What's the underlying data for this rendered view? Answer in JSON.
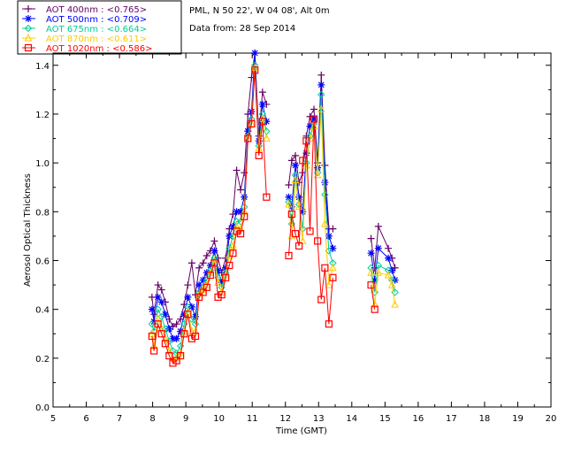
{
  "info": {
    "site": "PML, N 50 22', W 04 08', Alt 0m",
    "date": "Data from: 28 Sep 2014"
  },
  "chart_data": {
    "type": "line",
    "xlabel": "Time (GMT)",
    "ylabel": "Aerosol Optical Thickness",
    "xlim": [
      5,
      20
    ],
    "ylim": [
      0.0,
      1.45
    ],
    "xticks": [
      "5",
      "6",
      "7",
      "8",
      "9",
      "10",
      "11",
      "12",
      "13",
      "14",
      "15",
      "16",
      "17",
      "18",
      "19",
      "20"
    ],
    "yticks": [
      "0.0",
      "0.2",
      "0.4",
      "0.6",
      "0.8",
      "1.0",
      "1.2",
      "1.4"
    ],
    "grid": false,
    "legend": "top-left",
    "x": [
      7.98,
      8.04,
      8.16,
      8.27,
      8.38,
      8.5,
      8.61,
      8.72,
      8.84,
      8.95,
      9.06,
      9.18,
      9.29,
      9.4,
      9.52,
      9.63,
      9.74,
      9.86,
      9.97,
      10.08,
      10.2,
      10.31,
      10.42,
      10.53,
      10.65,
      10.76,
      10.87,
      10.98,
      11.08,
      11.2,
      11.31,
      11.43,
      12.1,
      12.19,
      12.3,
      12.41,
      12.52,
      12.63,
      12.74,
      12.86,
      12.97,
      13.08,
      13.19,
      13.31,
      13.43,
      14.58,
      14.69,
      14.8,
      15.1,
      15.21,
      15.3,
      15.4,
      15.52,
      15.63,
      15.75,
      15.86
    ],
    "series": [
      {
        "name": "AOT  400nm : <0.765>",
        "color": "#660066",
        "marker": "+",
        "values": [
          0.45,
          0.38,
          0.5,
          0.48,
          0.43,
          0.36,
          0.33,
          0.34,
          0.36,
          0.42,
          0.5,
          0.59,
          0.46,
          0.57,
          0.59,
          0.62,
          0.64,
          0.68,
          0.61,
          0.55,
          0.61,
          0.73,
          0.79,
          0.97,
          0.89,
          0.96,
          1.2,
          1.35,
          1.45,
          1.11,
          1.29,
          1.24,
          0.91,
          1.01,
          1.03,
          0.92,
          0.96,
          1.11,
          1.19,
          1.22,
          1.0,
          1.36,
          0.99,
          0.73,
          0.73,
          0.69,
          0.57,
          0.74,
          0.65,
          0.61,
          0.57,
          null,
          null,
          null,
          null,
          null
        ]
      },
      {
        "name": "AOT  500nm : <0.709>",
        "color": "#0000ff",
        "marker": "*",
        "values": [
          0.4,
          0.35,
          0.45,
          0.43,
          0.38,
          0.32,
          0.28,
          0.28,
          0.31,
          0.38,
          0.45,
          0.41,
          0.37,
          0.5,
          0.52,
          0.55,
          0.58,
          0.64,
          0.56,
          0.51,
          0.57,
          0.7,
          0.74,
          0.8,
          0.8,
          0.86,
          1.13,
          1.21,
          1.45,
          1.09,
          1.24,
          1.17,
          0.86,
          0.82,
          0.99,
          0.86,
          0.8,
          1.04,
          1.15,
          1.18,
          0.98,
          1.32,
          0.92,
          0.7,
          0.65,
          0.63,
          0.52,
          0.65,
          0.61,
          0.56,
          0.52,
          null,
          null,
          null,
          null,
          null
        ]
      },
      {
        "name": "AOT  675nm : <0.664>",
        "color": "#00cc99",
        "marker": "d",
        "values": [
          0.34,
          0.31,
          0.4,
          0.37,
          0.32,
          0.27,
          0.23,
          0.22,
          0.25,
          0.34,
          0.41,
          0.36,
          0.34,
          0.47,
          0.49,
          0.52,
          0.56,
          0.61,
          0.53,
          0.49,
          0.55,
          0.65,
          0.7,
          0.76,
          0.76,
          0.82,
          1.11,
          1.18,
          1.4,
          1.07,
          1.2,
          1.13,
          0.84,
          0.75,
          0.95,
          0.83,
          0.73,
          1.0,
          1.11,
          1.16,
          0.96,
          1.28,
          0.87,
          0.64,
          0.59,
          0.57,
          0.47,
          0.58,
          0.56,
          0.52,
          0.47,
          null,
          null,
          null,
          null,
          null
        ]
      },
      {
        "name": "AOT  870nm : <0.611>",
        "color": "#ffcc00",
        "marker": "^",
        "values": [
          0.3,
          0.25,
          0.36,
          0.32,
          0.28,
          0.23,
          0.2,
          0.2,
          0.22,
          0.31,
          0.39,
          0.31,
          0.31,
          0.46,
          0.48,
          0.5,
          0.55,
          0.6,
          0.51,
          0.47,
          0.54,
          0.62,
          0.66,
          0.74,
          0.73,
          0.8,
          1.1,
          1.16,
          1.39,
          1.06,
          1.18,
          1.1,
          0.83,
          0.7,
          0.93,
          0.82,
          0.68,
          0.99,
          1.1,
          1.15,
          0.95,
          1.22,
          0.75,
          0.5,
          0.57,
          0.55,
          0.42,
          0.55,
          0.54,
          0.5,
          0.42,
          null,
          null,
          null,
          null,
          null
        ]
      },
      {
        "name": "AOT 1020nm : <0.586>",
        "color": "#ff0000",
        "marker": "s",
        "values": [
          0.29,
          0.23,
          0.34,
          0.3,
          0.26,
          0.21,
          0.18,
          0.19,
          0.21,
          0.3,
          0.38,
          0.28,
          0.29,
          0.45,
          0.47,
          0.49,
          0.54,
          0.59,
          0.45,
          0.46,
          0.53,
          0.58,
          0.63,
          0.72,
          0.71,
          0.78,
          1.1,
          1.16,
          1.38,
          1.03,
          1.17,
          0.86,
          0.62,
          0.79,
          0.71,
          0.66,
          1.01,
          1.09,
          0.72,
          1.18,
          0.68,
          0.44,
          0.57,
          0.34,
          0.53,
          0.5,
          0.4,
          null,
          null,
          null,
          null,
          null,
          null,
          null,
          null,
          null
        ]
      }
    ]
  }
}
